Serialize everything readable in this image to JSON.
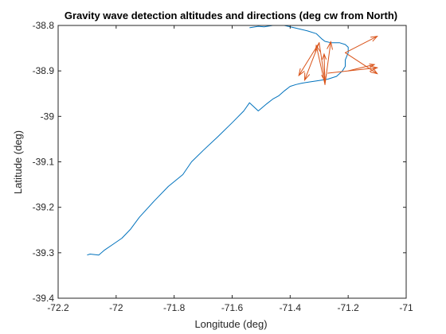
{
  "chart_data": {
    "type": "line",
    "title": "Gravity wave detection altitudes and directions (deg cw from North)",
    "xlabel": "Longitude (deg)",
    "ylabel": "Latitude (deg)",
    "xlim": [
      -72.2,
      -71
    ],
    "ylim": [
      -39.4,
      -38.8
    ],
    "xticks": [
      -72.2,
      -72,
      -71.8,
      -71.6,
      -71.4,
      -71.2,
      -71
    ],
    "xtick_labels": [
      "-72.2",
      "-72",
      "-71.8",
      "-71.6",
      "-71.4",
      "-71.2",
      "-71"
    ],
    "yticks": [
      -39.4,
      -39.3,
      -39.2,
      -39.1,
      -39,
      -38.9,
      -38.8
    ],
    "ytick_labels": [
      "-39.4",
      "-39.3",
      "-39.2",
      "-39.1",
      "-39",
      "-38.9",
      "-38.8"
    ],
    "grid": false,
    "series": [
      {
        "kind": "line",
        "color": "#0072BD",
        "x": [
          -72.1,
          -72.09,
          -72.06,
          -72.04,
          -72.01,
          -71.98,
          -71.95,
          -71.92,
          -71.87,
          -71.82,
          -71.77,
          -71.74,
          -71.7,
          -71.65,
          -71.6,
          -71.56,
          -71.54,
          -71.51,
          -71.48,
          -71.46,
          -71.44,
          -71.42,
          -71.4,
          -71.38,
          -71.36,
          -71.33,
          -71.3,
          -71.27,
          -71.24,
          -71.22,
          -71.21,
          -71.21,
          -71.2,
          -71.2,
          -71.21,
          -71.21,
          -71.23,
          -71.26,
          -71.28,
          -71.29,
          -71.31,
          -71.34,
          -71.38,
          -71.42,
          -71.46,
          -71.49,
          -71.51,
          -71.54
        ],
        "y": [
          -39.305,
          -39.303,
          -39.305,
          -39.294,
          -39.281,
          -39.268,
          -39.248,
          -39.222,
          -39.187,
          -39.154,
          -39.128,
          -39.1,
          -39.075,
          -39.045,
          -39.014,
          -38.988,
          -38.97,
          -38.988,
          -38.972,
          -38.962,
          -38.955,
          -38.944,
          -38.934,
          -38.93,
          -38.927,
          -38.924,
          -38.921,
          -38.918,
          -38.912,
          -38.9,
          -38.89,
          -38.876,
          -38.86,
          -38.848,
          -38.842,
          -38.842,
          -38.838,
          -38.838,
          -38.835,
          -38.83,
          -38.818,
          -38.812,
          -38.806,
          -38.8,
          -38.8,
          -38.803,
          -38.802,
          -38.805
        ]
      },
      {
        "kind": "arrows",
        "color": "#D95319",
        "arrows": [
          {
            "x": -71.3,
            "y": -38.838,
            "u": -0.07,
            "v": -0.072
          },
          {
            "x": -71.3,
            "y": -38.838,
            "u": -0.05,
            "v": -0.082
          },
          {
            "x": -71.3,
            "y": -38.838,
            "u": 0.02,
            "v": -0.085
          },
          {
            "x": -71.28,
            "y": -38.93,
            "u": -0.03,
            "v": 0.086
          },
          {
            "x": -71.28,
            "y": -38.93,
            "u": 0.02,
            "v": 0.094
          },
          {
            "x": -71.28,
            "y": -38.93,
            "u": -0.003,
            "v": 0.067
          },
          {
            "x": -71.21,
            "y": -38.86,
            "u": 0.11,
            "v": 0.036
          },
          {
            "x": -71.21,
            "y": -38.86,
            "u": 0.11,
            "v": -0.046
          },
          {
            "x": -71.2,
            "y": -38.9,
            "u": 0.09,
            "v": 0.014
          },
          {
            "x": -71.27,
            "y": -38.905,
            "u": 0.17,
            "v": 0.012
          }
        ]
      }
    ]
  }
}
